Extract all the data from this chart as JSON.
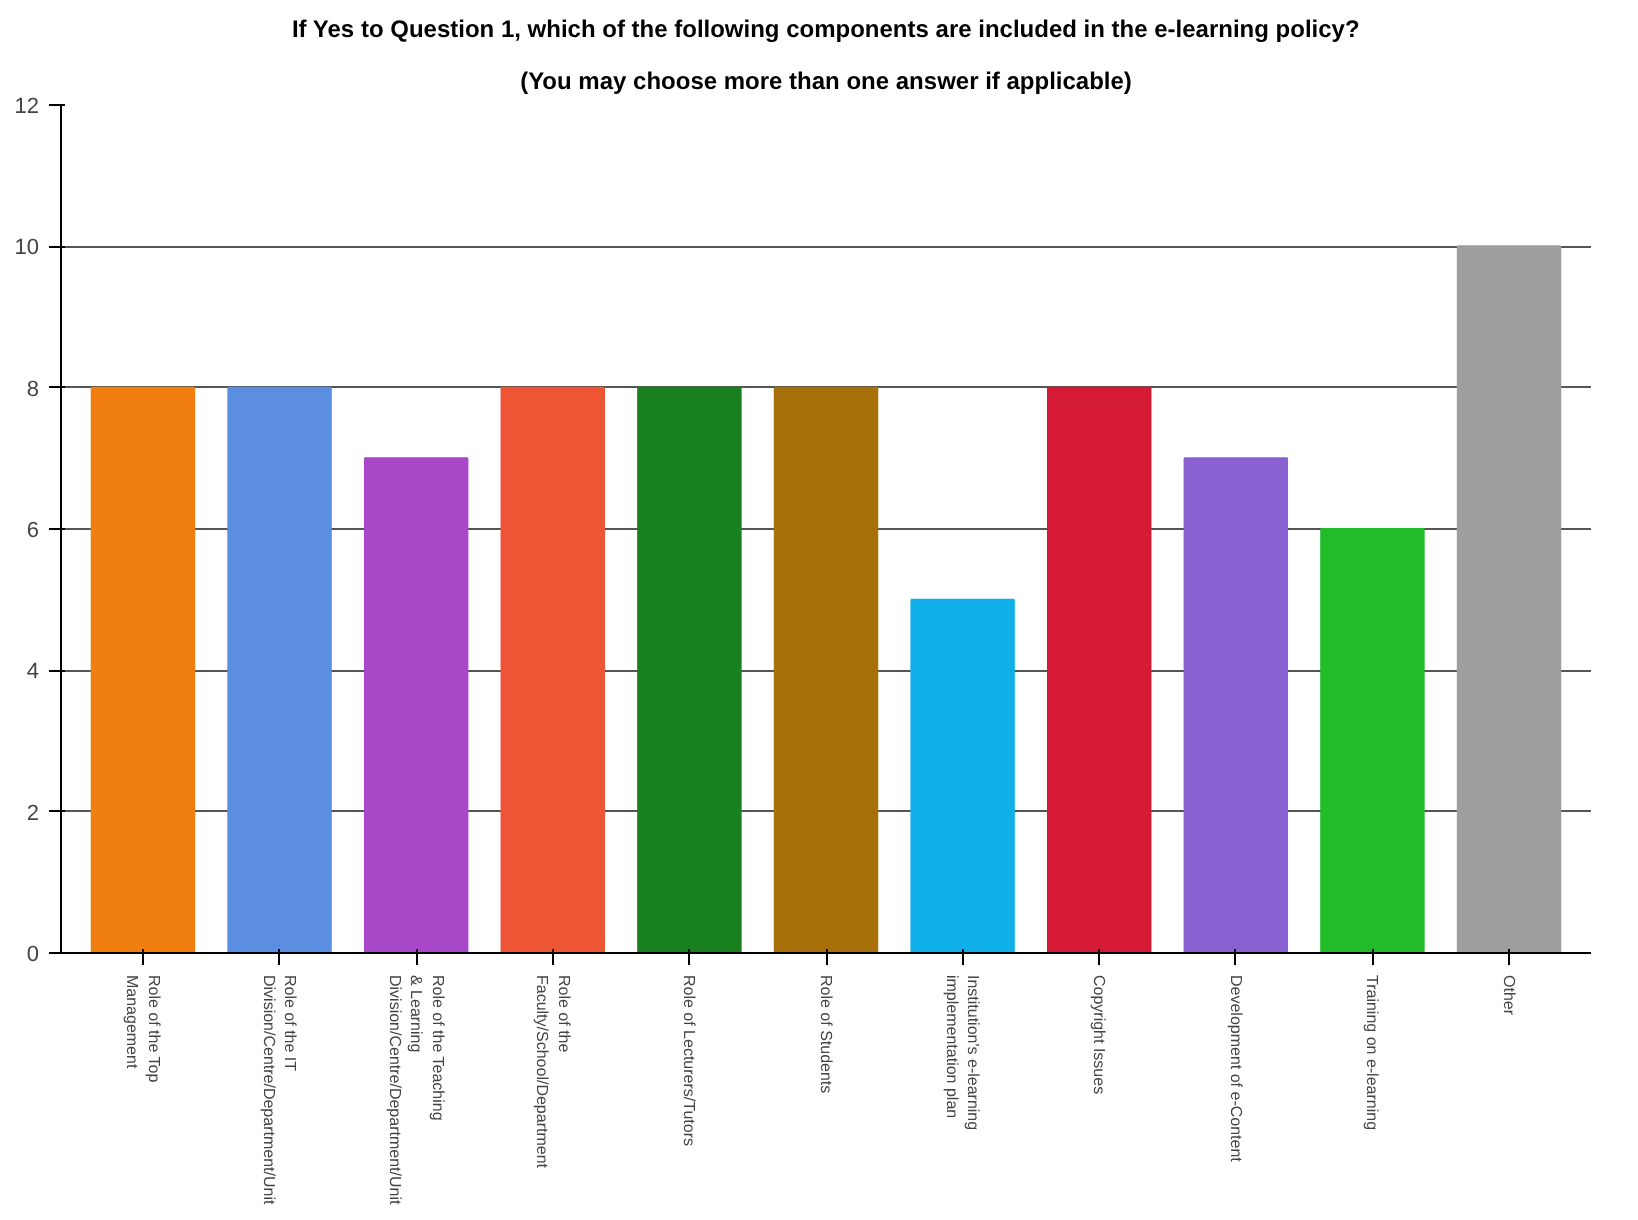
{
  "chart_data": {
    "type": "bar",
    "title": "If Yes to Question 1, which of the following components are included in the e-learning policy?",
    "subtitle": "(You may choose more than one answer if applicable)",
    "categories": [
      "Role of the Top\nManagement",
      "Role of the IT\nDivision/Centre/Department/Unit",
      "Role of the Teaching\n& Learning\nDivision/Centre/Department/Unit",
      "Role of the\nFaculty/School/Department",
      "Role of Lecturers/Tutors",
      "Role of Students",
      "Institution's e-learning\nimplementation plan",
      "Copyright Issues",
      "Development of e-Content",
      "Training on e-learning",
      "Other"
    ],
    "values": [
      8,
      8,
      7,
      8,
      8,
      8,
      5,
      8,
      7,
      6,
      10
    ],
    "colors": [
      "#f07f10",
      "#5b8ee0",
      "#a848c8",
      "#ee5535",
      "#18801e",
      "#a8700a",
      "#10b0ea",
      "#d51a35",
      "#8860d0",
      "#22bb2a",
      "#9e9e9e"
    ],
    "ylim": [
      0,
      12
    ],
    "yticks": [
      0,
      2,
      4,
      6,
      8,
      10,
      12
    ],
    "grid": "y"
  }
}
